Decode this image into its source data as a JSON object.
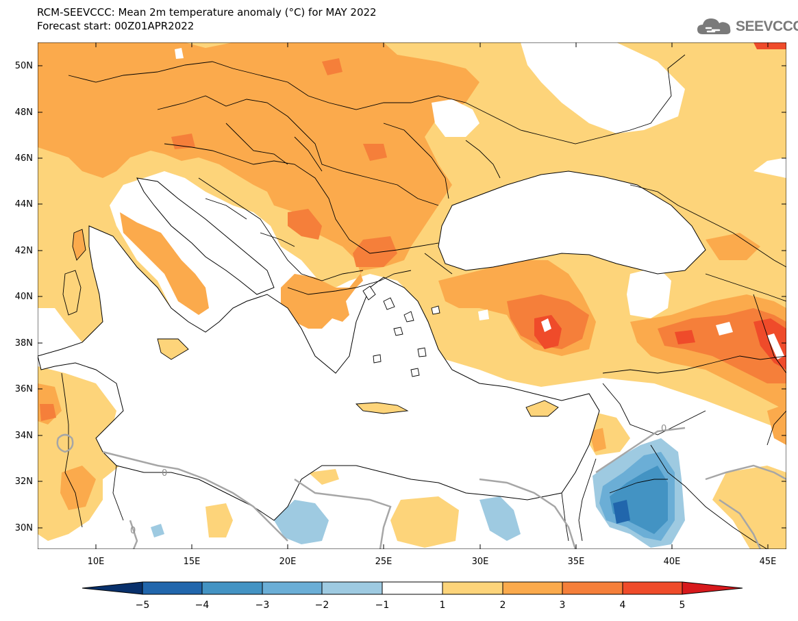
{
  "title_line1": "RCM-SEEVCCC: Mean 2m temperature anomaly (°C) for MAY 2022",
  "title_line2": "Forecast start: 00Z01APR2022",
  "logo_text": "SEEVCCC",
  "map": {
    "lat_labels": [
      "50N",
      "48N",
      "46N",
      "44N",
      "42N",
      "40N",
      "38N",
      "36N",
      "34N",
      "32N",
      "30N"
    ],
    "lon_labels": [
      "10E",
      "15E",
      "20E",
      "25E",
      "30E",
      "35E",
      "40E",
      "45E"
    ],
    "contour_labels": [
      "0",
      "0",
      "0"
    ]
  },
  "colorbar": {
    "ticks": [
      "−5",
      "−4",
      "−3",
      "−2",
      "−1",
      "1",
      "2",
      "3",
      "4",
      "5"
    ],
    "colors": {
      "min_arrow": "#08306b",
      "neg5_neg4": "#2166ac",
      "neg4_neg3": "#4393c3",
      "neg3_neg2": "#6baed6",
      "neg2_neg1": "#9ecae1",
      "neutral": "#ffffff",
      "pos1_2": "#fdd47a",
      "pos2_3": "#fbaa4c",
      "pos3_4": "#f57f3a",
      "pos4_5": "#ef4b2a",
      "max_arrow": "#d7191c"
    }
  }
}
